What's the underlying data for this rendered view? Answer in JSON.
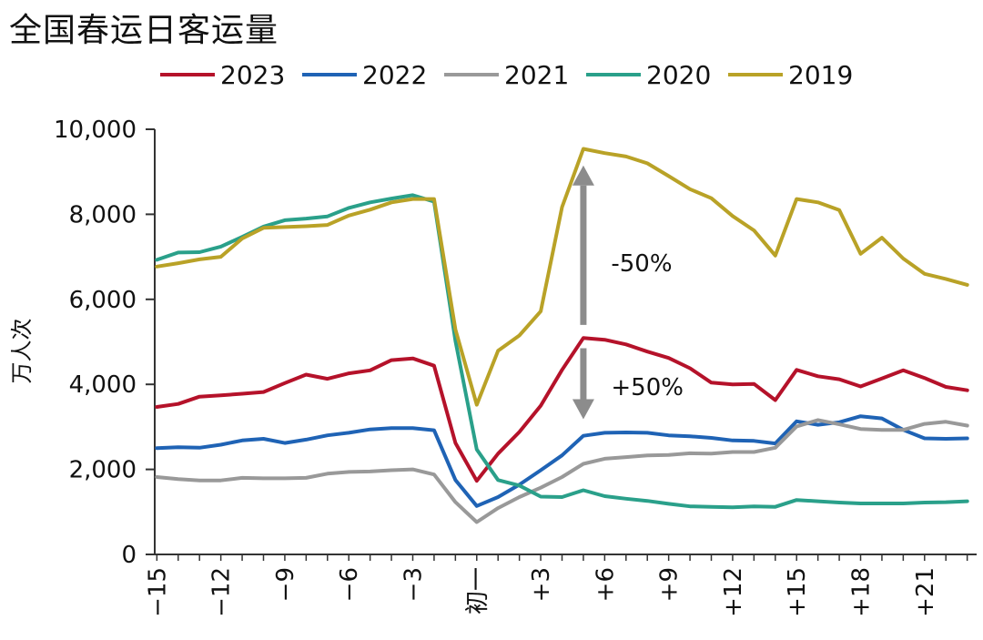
{
  "chart_data": {
    "type": "line",
    "title": "全国春运日客运量",
    "ylabel": "万人次",
    "xlabel": "",
    "ylim": [
      0,
      10000
    ],
    "yticks": [
      0,
      2000,
      4000,
      6000,
      8000,
      10000
    ],
    "ytick_labels": [
      "0",
      "2,000",
      "4,000",
      "6,000",
      "8,000",
      "10,000"
    ],
    "x": [
      -15,
      -14,
      -13,
      -12,
      -11,
      -10,
      -9,
      -8,
      -7,
      -6,
      -5,
      -4,
      -3,
      -2,
      -1,
      0,
      1,
      2,
      3,
      4,
      5,
      6,
      7,
      8,
      9,
      10,
      11,
      12,
      13,
      14,
      15,
      16,
      17,
      18,
      19,
      20,
      21,
      22,
      23
    ],
    "xticks": [
      -15,
      -12,
      -9,
      -6,
      -3,
      0,
      3,
      6,
      9,
      12,
      15,
      18,
      21
    ],
    "xtick_labels": [
      "−15",
      "−12",
      "−9",
      "−6",
      "−3",
      "初一",
      "+3",
      "+6",
      "+9",
      "+12",
      "+15",
      "+18",
      "+21"
    ],
    "legend_position": "top",
    "grid": false,
    "series": [
      {
        "name": "2023",
        "color": "#b5122a",
        "values": [
          3470,
          3540,
          3710,
          3740,
          3780,
          3820,
          4030,
          4230,
          4130,
          4260,
          4330,
          4570,
          4610,
          4440,
          2620,
          1730,
          2370,
          2880,
          3500,
          4340,
          5090,
          5050,
          4940,
          4770,
          4620,
          4380,
          4040,
          4000,
          4010,
          3630,
          4340,
          4190,
          4120,
          3950,
          4140,
          4330,
          4150,
          3940,
          3860
        ]
      },
      {
        "name": "2022",
        "color": "#1f63b5",
        "values": [
          2500,
          2520,
          2510,
          2580,
          2680,
          2720,
          2620,
          2700,
          2800,
          2860,
          2940,
          2970,
          2970,
          2920,
          1750,
          1140,
          1350,
          1640,
          1980,
          2330,
          2790,
          2860,
          2870,
          2860,
          2800,
          2780,
          2740,
          2680,
          2670,
          2610,
          3130,
          3050,
          3110,
          3250,
          3200,
          2930,
          2730,
          2720,
          2730
        ]
      },
      {
        "name": "2021",
        "color": "#999999",
        "values": [
          1820,
          1770,
          1740,
          1740,
          1800,
          1790,
          1790,
          1800,
          1900,
          1940,
          1950,
          1980,
          2000,
          1880,
          1230,
          760,
          1090,
          1350,
          1570,
          1820,
          2130,
          2250,
          2290,
          2330,
          2340,
          2380,
          2370,
          2410,
          2410,
          2510,
          3010,
          3160,
          3060,
          2950,
          2930,
          2930,
          3070,
          3120,
          3030
        ]
      },
      {
        "name": "2020",
        "color": "#2aa08a",
        "values": [
          6930,
          7100,
          7110,
          7240,
          7470,
          7710,
          7860,
          7900,
          7950,
          8150,
          8280,
          8370,
          8450,
          8300,
          5020,
          2470,
          1750,
          1620,
          1360,
          1350,
          1510,
          1370,
          1310,
          1260,
          1190,
          1130,
          1120,
          1110,
          1130,
          1120,
          1280,
          1250,
          1220,
          1200,
          1200,
          1200,
          1220,
          1230,
          1250
        ]
      },
      {
        "name": "2019",
        "color": "#b9a227",
        "values": [
          6770,
          6850,
          6940,
          7000,
          7430,
          7680,
          7700,
          7720,
          7750,
          7970,
          8110,
          8280,
          8360,
          8360,
          5290,
          3520,
          4790,
          5150,
          5720,
          8170,
          9540,
          9440,
          9360,
          9200,
          8900,
          8590,
          8380,
          7960,
          7620,
          7030,
          8360,
          8280,
          8100,
          7070,
          7450,
          6960,
          6600,
          6480,
          6340
        ]
      }
    ],
    "annotations": [
      {
        "text": "-50%",
        "x": 6.3,
        "y": 6850
      },
      {
        "text": "+50%",
        "x": 6.3,
        "y": 3940
      }
    ],
    "annotation_arrows": [
      {
        "x": 5,
        "y_from": 5400,
        "y_to": 9150,
        "color": "#8c8c8c"
      },
      {
        "x": 5,
        "y_from": 4850,
        "y_to": 3180,
        "color": "#8c8c8c"
      }
    ]
  }
}
